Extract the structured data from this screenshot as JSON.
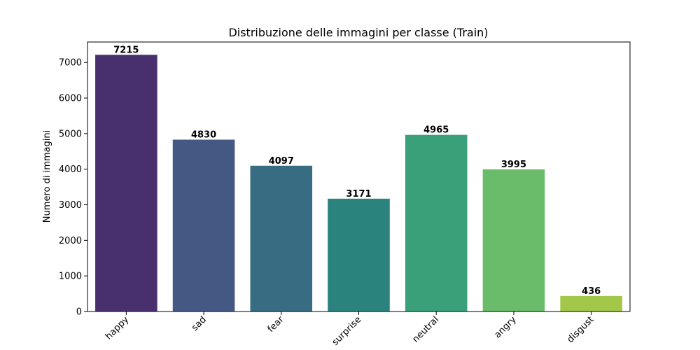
{
  "chart_data": {
    "type": "bar",
    "title": "Distribuzione delle immagini per classe (Train)",
    "xlabel": "",
    "ylabel": "Numero di immagini",
    "categories": [
      "happy",
      "sad",
      "fear",
      "surprise",
      "neutral",
      "angry",
      "disgust"
    ],
    "values": [
      7215,
      4830,
      4097,
      3171,
      4965,
      3995,
      436
    ],
    "value_labels": [
      "7215",
      "4830",
      "4097",
      "3171",
      "4965",
      "3995",
      "436"
    ],
    "colors": [
      "#48306e",
      "#435882",
      "#376c82",
      "#2b837e",
      "#3aa07a",
      "#6abb6a",
      "#a3c849"
    ],
    "ylim": [
      0,
      7575
    ],
    "yticks": [
      0,
      1000,
      2000,
      3000,
      4000,
      5000,
      6000,
      7000
    ],
    "ytick_labels": [
      "0",
      "1000",
      "2000",
      "3000",
      "4000",
      "5000",
      "6000",
      "7000"
    ],
    "grid": false,
    "legend": "none"
  }
}
